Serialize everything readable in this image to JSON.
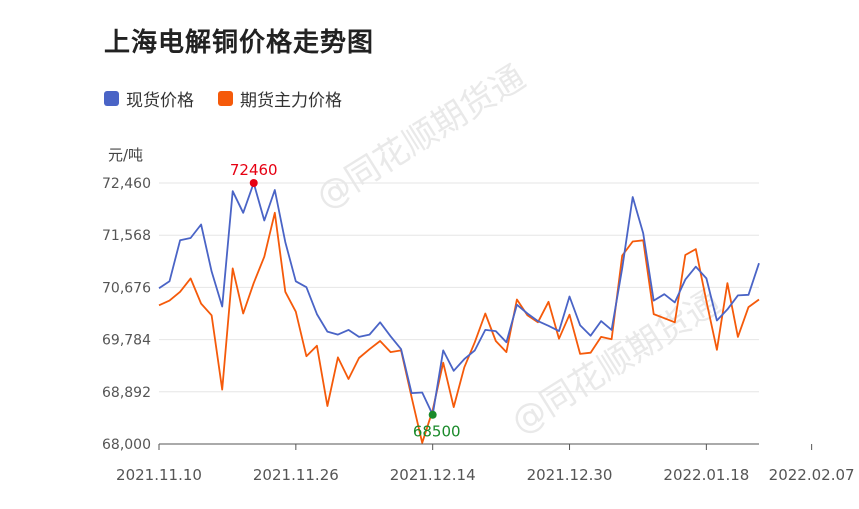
{
  "title": "上海电解铜价格走势图",
  "unit": "元/吨",
  "watermark": "@同花顺期货通",
  "colors": {
    "spot": "#4a64c6",
    "futures": "#f55a0a",
    "max_marker": "#e60012",
    "min_marker": "#1a8a2a",
    "grid": "#e6e6e6",
    "axis": "#555555"
  },
  "chart_data": {
    "type": "line",
    "title": "上海电解铜价格走势图",
    "ylabel": "元/吨",
    "ylim": [
      68000,
      72460
    ],
    "y_ticks": [
      "68,000",
      "68,892",
      "69,784",
      "70,676",
      "71,568",
      "72,460"
    ],
    "y_tick_values": [
      68000,
      68892,
      69784,
      70676,
      71568,
      72460
    ],
    "x_tick_labels": [
      "2021.11.10",
      "2021.11.26",
      "2021.12.14",
      "2021.12.30",
      "2022.01.18",
      "2022.02.07"
    ],
    "x_tick_index": [
      0,
      13,
      26,
      39,
      52,
      62
    ],
    "legend_position": "top-left",
    "grid": true,
    "series": [
      {
        "name": "现货价格",
        "color": "#4a64c6",
        "values": [
          70660,
          70780,
          71480,
          71520,
          71750,
          70950,
          70350,
          72320,
          71950,
          72460,
          71820,
          72340,
          71450,
          70780,
          70680,
          70220,
          69920,
          69870,
          69950,
          69830,
          69870,
          70080,
          69840,
          69620,
          68870,
          68880,
          68500,
          69600,
          69250,
          69450,
          69600,
          69950,
          69930,
          69740,
          70380,
          70230,
          70100,
          70020,
          69930,
          70520,
          70030,
          69850,
          70100,
          69950,
          71000,
          72220,
          71600,
          70450,
          70560,
          70420,
          70810,
          71030,
          70830,
          70110,
          70300,
          70540,
          70550,
          71090
        ]
      },
      {
        "name": "期货主力价格",
        "color": "#f55a0a",
        "values": [
          70370,
          70450,
          70600,
          70830,
          70400,
          70200,
          68930,
          71000,
          70230,
          70750,
          71200,
          71950,
          70600,
          70260,
          69500,
          69680,
          68650,
          69480,
          69110,
          69470,
          69620,
          69760,
          69570,
          69600,
          68800,
          68020,
          68580,
          69390,
          68630,
          69310,
          69740,
          70230,
          69760,
          69570,
          70470,
          70200,
          70080,
          70430,
          69800,
          70210,
          69540,
          69560,
          69830,
          69790,
          71220,
          71460,
          71480,
          70220,
          70150,
          70080,
          71230,
          71330,
          70440,
          69610,
          70750,
          69830,
          70340,
          70470
        ]
      }
    ],
    "annotations": [
      {
        "label": "72460",
        "series": "现货价格",
        "index": 9,
        "value": 72460,
        "kind": "max"
      },
      {
        "label": "68500",
        "series": "现货价格",
        "index": 26,
        "value": 68500,
        "kind": "min"
      }
    ]
  }
}
